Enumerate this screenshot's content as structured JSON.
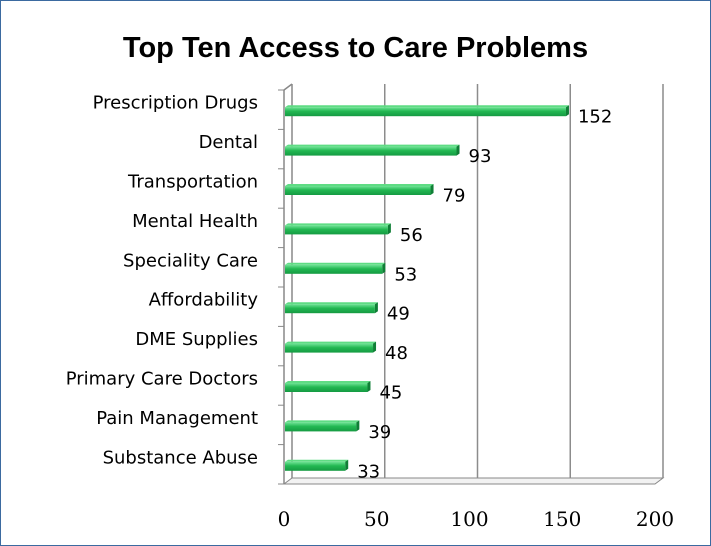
{
  "chart_data": {
    "type": "bar",
    "orientation": "horizontal",
    "title": "Top Ten Access to Care Problems",
    "categories": [
      "Prescription Drugs",
      "Dental",
      "Transportation",
      "Mental Health",
      "Speciality Care",
      "Affordability",
      "DME Supplies",
      "Primary Care Doctors",
      "Pain Management",
      "Substance Abuse"
    ],
    "values": [
      152,
      93,
      79,
      56,
      53,
      49,
      48,
      45,
      39,
      33
    ],
    "xlim": [
      0,
      200
    ],
    "xticks": [
      0,
      50,
      100,
      150,
      200
    ],
    "grid": true,
    "legend": "none",
    "bar_color": "#1ab04d",
    "bar_highlight": "#5fdc84"
  }
}
